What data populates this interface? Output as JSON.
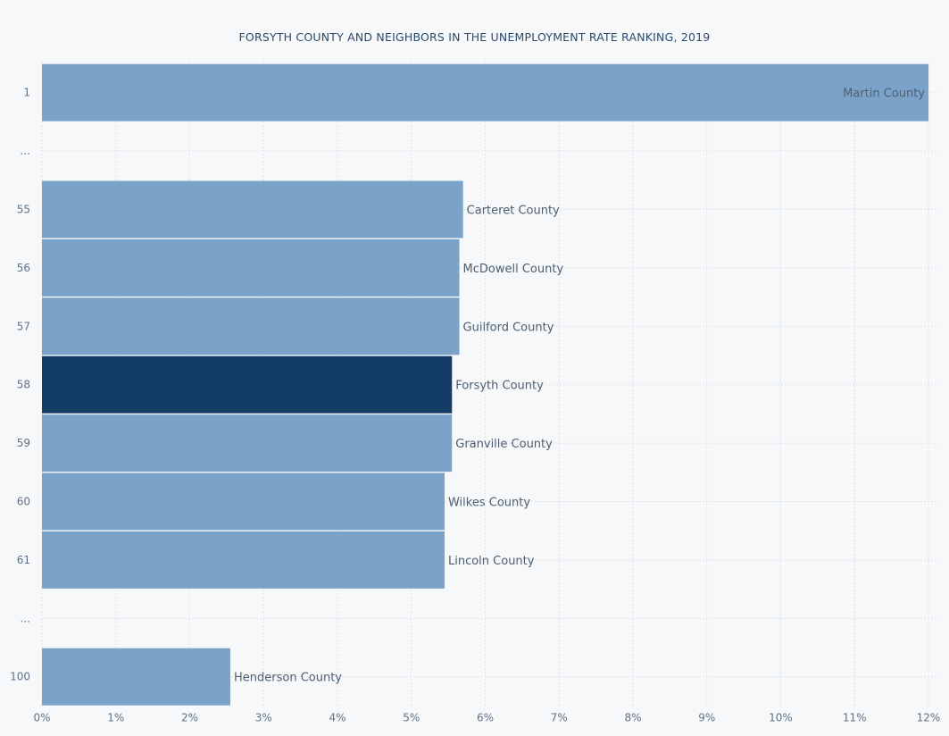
{
  "chart_data": {
    "type": "bar",
    "orientation": "horizontal",
    "title": "FORSYTH COUNTY AND NEIGHBORS IN THE UNEMPLOYMENT RATE RANKING, 2019",
    "xlim": [
      0,
      12
    ],
    "x_ticks": [
      "0%",
      "1%",
      "2%",
      "3%",
      "4%",
      "5%",
      "6%",
      "7%",
      "8%",
      "9%",
      "10%",
      "11%",
      "12%"
    ],
    "grid": true,
    "rows": [
      {
        "rank": "1",
        "name": "Martin County",
        "value": 12.0,
        "highlight": false
      },
      {
        "rank": "...",
        "name": "",
        "value": null,
        "highlight": false
      },
      {
        "rank": "55",
        "name": "Carteret County",
        "value": 5.7,
        "highlight": false
      },
      {
        "rank": "56",
        "name": "McDowell County",
        "value": 5.65,
        "highlight": false
      },
      {
        "rank": "57",
        "name": "Guilford County",
        "value": 5.65,
        "highlight": false
      },
      {
        "rank": "58",
        "name": "Forsyth County",
        "value": 5.55,
        "highlight": true
      },
      {
        "rank": "59",
        "name": "Granville County",
        "value": 5.55,
        "highlight": false
      },
      {
        "rank": "60",
        "name": "Wilkes County",
        "value": 5.45,
        "highlight": false
      },
      {
        "rank": "61",
        "name": "Lincoln County",
        "value": 5.45,
        "highlight": false
      },
      {
        "rank": "...",
        "name": "",
        "value": null,
        "highlight": false
      },
      {
        "rank": "100",
        "name": "Henderson County",
        "value": 2.55,
        "highlight": false
      }
    ],
    "colors": {
      "bar": "#7ba3c9",
      "highlight": "#133c66",
      "grid": "#dfe4ea"
    }
  }
}
